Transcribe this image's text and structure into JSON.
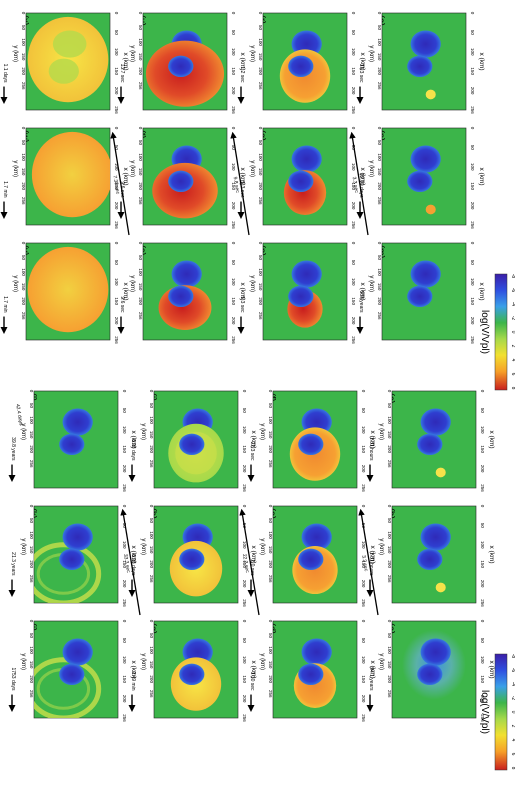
{
  "panels": [
    {
      "label": "(a)",
      "time": "94.1 years",
      "arrow": true
    },
    {
      "label": "(b)",
      "time": "1.31 hours",
      "arrow": true
    },
    {
      "label": "(c)",
      "time": "1.31 hours",
      "arrow": true
    },
    {
      "label": "(d)",
      "time": "1.30 sec",
      "arrow": true
    },
    {
      "label": "(e)",
      "time": "2.0 sec",
      "arrow": true
    },
    {
      "label": "(f)",
      "time": "22.3 sec",
      "arrow": true
    },
    {
      "label": "(g)",
      "time": "2.49 min",
      "arrow": true
    },
    {
      "label": "(h)",
      "time": "3.28 days",
      "arrow": true
    },
    {
      "label": "(i)",
      "time": "3.28 days",
      "arrow": true
    },
    {
      "label": "(j)",
      "time": "1753 days",
      "arrow": true
    },
    {
      "label": "(k)",
      "time": "21.3 years",
      "arrow": true
    },
    {
      "label": "(l)",
      "time": "39.8 years",
      "arrow": true
    },
    {
      "label": "(m)",
      "time": "358 years",
      "arrow": true
    },
    {
      "label": "(n)",
      "time": "12.10 days",
      "arrow": true
    },
    {
      "label": "(o)",
      "time": "13.3 sec",
      "arrow": true
    },
    {
      "label": "(p)",
      "time": "5.3 sec",
      "arrow": true
    },
    {
      "label": "(q)",
      "time": "5.3 sec",
      "arrow": true
    },
    {
      "label": "(r)",
      "time": "1.2 sec",
      "arrow": true
    },
    {
      "label": "(s)",
      "time": "9.6 sec",
      "arrow": true
    },
    {
      "label": "(t)",
      "time": "9.6 sec",
      "arrow": true
    },
    {
      "label": "(u)",
      "time": "13.7 sec",
      "arrow": true
    },
    {
      "label": "(v)",
      "time": "1.7 min",
      "arrow": true
    },
    {
      "label": "(w)",
      "time": "1.7 min",
      "arrow": true
    },
    {
      "label": "(x)",
      "time": "1.1 days",
      "arrow": true
    }
  ],
  "transitions_left": [
    "3.3 sec",
    "22.3 sec",
    "33.3 sec",
    "42.4 days"
  ],
  "transitions_right": [
    "3.3 sec",
    "9.8 sec",
    "7.38 sec"
  ],
  "axes": {
    "xlabel": "x (km)",
    "ylabel": "y (km)",
    "xticks": [
      "0",
      "50",
      "100",
      "150",
      "200",
      "256"
    ],
    "yticks": [
      "0",
      "50",
      "100",
      "150",
      "200",
      "256"
    ]
  },
  "colorbar": {
    "title": "log(V/Vpl)",
    "ticks": [
      "-8",
      "-6",
      "-4",
      "-2",
      "0",
      "2",
      "4",
      "6",
      "8"
    ],
    "annotation": "(V=1e-9 m/s)",
    "colors": [
      "#3a1fa8",
      "#2f4fe0",
      "#3aa0e8",
      "#3cb54a",
      "#a6d94a",
      "#f2e030",
      "#f6a028",
      "#e8562a",
      "#c81e1e"
    ]
  }
}
